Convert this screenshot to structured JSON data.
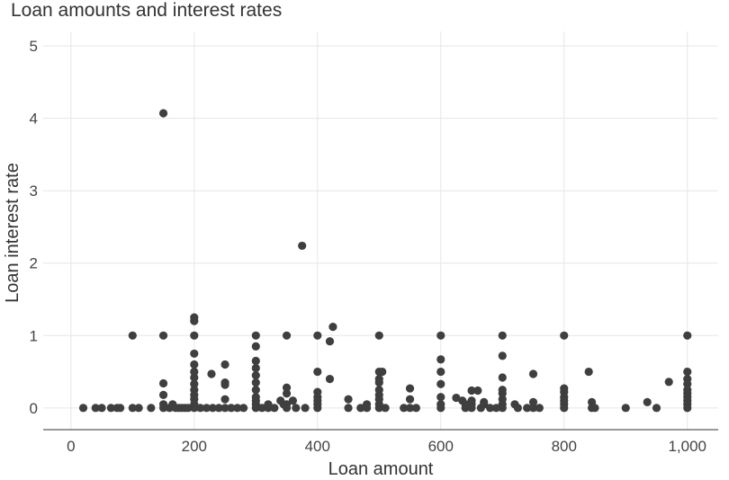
{
  "chart_data": {
    "type": "scatter",
    "title": "Loan amounts and interest rates",
    "xlabel": "Loan amount",
    "ylabel": "Loan interest rate",
    "xlim": [
      -45,
      1050
    ],
    "ylim": [
      -0.3,
      5.2
    ],
    "xticks": [
      0,
      200,
      400,
      600,
      800,
      1000
    ],
    "xtick_labels": [
      "0",
      "200",
      "400",
      "600",
      "800",
      "1,000"
    ],
    "yticks": [
      0,
      1,
      2,
      3,
      4,
      5
    ],
    "ytick_labels": [
      "0",
      "1",
      "2",
      "3",
      "4",
      "5"
    ],
    "grid": true,
    "legend": "none",
    "point_color": "#3f3f3f",
    "points": [
      [
        20,
        0
      ],
      [
        40,
        0
      ],
      [
        50,
        0
      ],
      [
        65,
        0
      ],
      [
        75,
        0
      ],
      [
        80,
        0
      ],
      [
        100,
        0
      ],
      [
        110,
        0
      ],
      [
        130,
        0
      ],
      [
        100,
        1
      ],
      [
        150,
        4.07
      ],
      [
        150,
        1
      ],
      [
        150,
        0.34
      ],
      [
        150,
        0.18
      ],
      [
        150,
        0.05
      ],
      [
        150,
        0
      ],
      [
        160,
        0
      ],
      [
        165,
        0.05
      ],
      [
        170,
        0
      ],
      [
        175,
        0
      ],
      [
        180,
        0
      ],
      [
        185,
        0
      ],
      [
        190,
        0
      ],
      [
        200,
        1.25
      ],
      [
        200,
        1.2
      ],
      [
        200,
        1
      ],
      [
        200,
        0.75
      ],
      [
        200,
        0.6
      ],
      [
        200,
        0.5
      ],
      [
        200,
        0.42
      ],
      [
        200,
        0.33
      ],
      [
        200,
        0.25
      ],
      [
        200,
        0.18
      ],
      [
        200,
        0.12
      ],
      [
        200,
        0.05
      ],
      [
        200,
        0
      ],
      [
        210,
        0
      ],
      [
        220,
        0
      ],
      [
        228,
        0.47
      ],
      [
        230,
        0
      ],
      [
        240,
        0
      ],
      [
        250,
        0.6
      ],
      [
        250,
        0.35
      ],
      [
        250,
        0.32
      ],
      [
        250,
        0.12
      ],
      [
        250,
        0
      ],
      [
        260,
        0
      ],
      [
        270,
        0
      ],
      [
        280,
        0
      ],
      [
        300,
        1
      ],
      [
        300,
        0.85
      ],
      [
        300,
        0.65
      ],
      [
        300,
        0.55
      ],
      [
        300,
        0.45
      ],
      [
        300,
        0.35
      ],
      [
        300,
        0.25
      ],
      [
        300,
        0.15
      ],
      [
        300,
        0.1
      ],
      [
        300,
        0.05
      ],
      [
        300,
        0
      ],
      [
        310,
        0
      ],
      [
        320,
        0.05
      ],
      [
        320,
        0
      ],
      [
        330,
        0
      ],
      [
        340,
        0.1
      ],
      [
        345,
        0.05
      ],
      [
        350,
        1
      ],
      [
        350,
        0.28
      ],
      [
        350,
        0.2
      ],
      [
        350,
        0.05
      ],
      [
        350,
        0
      ],
      [
        360,
        0.1
      ],
      [
        365,
        0
      ],
      [
        375,
        2.24
      ],
      [
        380,
        0
      ],
      [
        400,
        1
      ],
      [
        400,
        0.5
      ],
      [
        400,
        0.22
      ],
      [
        400,
        0.15
      ],
      [
        400,
        0.1
      ],
      [
        400,
        0.05
      ],
      [
        400,
        0
      ],
      [
        420,
        0.92
      ],
      [
        420,
        0.4
      ],
      [
        425,
        1.12
      ],
      [
        450,
        0.12
      ],
      [
        450,
        0
      ],
      [
        470,
        0
      ],
      [
        480,
        0.05
      ],
      [
        480,
        0
      ],
      [
        500,
        1
      ],
      [
        500,
        0.5
      ],
      [
        500,
        0.4
      ],
      [
        500,
        0.35
      ],
      [
        500,
        0.25
      ],
      [
        500,
        0.18
      ],
      [
        500,
        0.12
      ],
      [
        500,
        0.05
      ],
      [
        500,
        0
      ],
      [
        505,
        0.5
      ],
      [
        510,
        0
      ],
      [
        540,
        0
      ],
      [
        550,
        0.27
      ],
      [
        550,
        0.12
      ],
      [
        550,
        0
      ],
      [
        560,
        0
      ],
      [
        600,
        1
      ],
      [
        600,
        0.67
      ],
      [
        600,
        0.5
      ],
      [
        600,
        0.33
      ],
      [
        600,
        0.15
      ],
      [
        600,
        0.05
      ],
      [
        600,
        0
      ],
      [
        625,
        0.14
      ],
      [
        635,
        0.1
      ],
      [
        640,
        0.05
      ],
      [
        640,
        0
      ],
      [
        650,
        0.24
      ],
      [
        650,
        0.1
      ],
      [
        650,
        0.05
      ],
      [
        650,
        0
      ],
      [
        660,
        0.24
      ],
      [
        665,
        0
      ],
      [
        670,
        0.08
      ],
      [
        670,
        0.05
      ],
      [
        680,
        0
      ],
      [
        700,
        1
      ],
      [
        700,
        0.72
      ],
      [
        700,
        0.42
      ],
      [
        700,
        0.25
      ],
      [
        700,
        0.2
      ],
      [
        700,
        0.12
      ],
      [
        700,
        0.05
      ],
      [
        700,
        0
      ],
      [
        690,
        0
      ],
      [
        720,
        0.05
      ],
      [
        725,
        0
      ],
      [
        740,
        0
      ],
      [
        750,
        0.47
      ],
      [
        750,
        0.08
      ],
      [
        750,
        0
      ],
      [
        760,
        0
      ],
      [
        800,
        1
      ],
      [
        800,
        0.27
      ],
      [
        800,
        0.22
      ],
      [
        800,
        0.15
      ],
      [
        800,
        0.1
      ],
      [
        800,
        0.05
      ],
      [
        800,
        0
      ],
      [
        840,
        0.5
      ],
      [
        845,
        0.08
      ],
      [
        845,
        0
      ],
      [
        850,
        0
      ],
      [
        900,
        0
      ],
      [
        935,
        0.08
      ],
      [
        950,
        0
      ],
      [
        970,
        0.36
      ],
      [
        1000,
        1
      ],
      [
        1000,
        0.5
      ],
      [
        1000,
        0.4
      ],
      [
        1000,
        0.33
      ],
      [
        1000,
        0.25
      ],
      [
        1000,
        0.2
      ],
      [
        1000,
        0.15
      ],
      [
        1000,
        0.1
      ],
      [
        1000,
        0.05
      ],
      [
        1000,
        0
      ]
    ]
  }
}
